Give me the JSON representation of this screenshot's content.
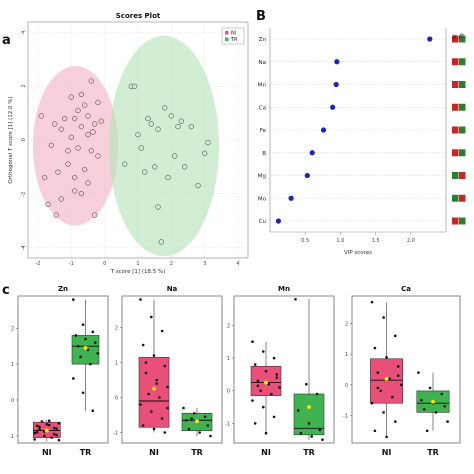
{
  "panels": {
    "a": "a",
    "b": "B",
    "c": "c"
  },
  "colors": {
    "NI": "#e8507a",
    "TR": "#3fb34f",
    "NI_fill": "#f3b7c7",
    "TR_fill": "#b9e3bd",
    "vip_point": "#1f24b5",
    "heat_high": "#c62828",
    "heat_low": "#2e7d32"
  },
  "chart_data": [
    {
      "type": "scatter",
      "title": "Scores Plot",
      "xlabel": "T score [1] (18.5 %)",
      "ylabel": "Orthogonal T score [1] (12.0 %)",
      "xlim": [
        -2.3,
        4.3
      ],
      "ylim": [
        -4.4,
        4.4
      ],
      "xticks": [
        "-2",
        "-1",
        "0",
        "1",
        "2",
        "3",
        "4"
      ],
      "yticks": [
        "4",
        "2",
        "0",
        "-2",
        "-4"
      ],
      "legend": [
        "NI",
        "TR"
      ],
      "legend_position": "top-right",
      "grid": true,
      "series": [
        {
          "name": "NI",
          "x": [
            -1.9,
            -1.7,
            -1.5,
            -1.4,
            -1.3,
            -1.2,
            -1.1,
            -1.0,
            -1.0,
            -0.9,
            -0.9,
            -0.8,
            -0.8,
            -0.7,
            -0.7,
            -0.6,
            -0.6,
            -0.5,
            -0.5,
            -0.4,
            -0.4,
            -0.3,
            -0.3,
            -0.2,
            -0.2,
            -1.6,
            -1.3,
            -0.9,
            -0.5,
            -0.1,
            -1.8,
            -1.1,
            -0.7,
            -0.35,
            -1.45
          ],
          "y": [
            0.9,
            -2.4,
            0.6,
            -1.2,
            -2.2,
            0.8,
            -0.9,
            0.1,
            1.6,
            -1.9,
            0.8,
            1.1,
            -0.3,
            -2.0,
            0.5,
            1.3,
            -1.1,
            0.2,
            0.9,
            -0.4,
            2.2,
            -2.8,
            0.6,
            -0.6,
            1.4,
            -0.2,
            0.4,
            -1.4,
            -1.6,
            0.7,
            -1.4,
            -0.4,
            1.7,
            0.3,
            -2.8
          ]
        },
        {
          "name": "TR",
          "x": [
            0.8,
            0.9,
            1.0,
            1.2,
            1.3,
            1.5,
            1.6,
            1.7,
            1.8,
            2.0,
            2.1,
            2.2,
            2.4,
            2.6,
            2.8,
            3.0,
            3.1,
            1.1,
            1.4,
            1.9,
            0.6,
            2.3,
            1.6
          ],
          "y": [
            2.0,
            2.0,
            0.2,
            -1.2,
            0.8,
            -1.0,
            -2.5,
            -3.8,
            1.2,
            0.9,
            -0.6,
            0.5,
            -1.0,
            0.5,
            -1.7,
            -0.5,
            -0.1,
            -0.3,
            0.6,
            -1.4,
            -0.9,
            0.7,
            0.4
          ]
        }
      ]
    },
    {
      "type": "scatter",
      "xlabel": "VIP scores",
      "xlim": [
        0,
        2.5
      ],
      "xticks": [
        "0.5",
        "1.0",
        "1.5",
        "2.0"
      ],
      "categories": [
        "Zn",
        "Na",
        "Mn",
        "Ca",
        "Fe",
        "B",
        "Mg",
        "Mo",
        "Cu"
      ],
      "values": [
        2.27,
        0.95,
        0.94,
        0.89,
        0.76,
        0.6,
        0.53,
        0.3,
        0.12
      ],
      "heatmap_columns": [
        "NI",
        "TR"
      ],
      "heatmap": [
        [
          "high",
          "low"
        ],
        [
          "high",
          "low"
        ],
        [
          "high",
          "low"
        ],
        [
          "high",
          "low"
        ],
        [
          "high",
          "low"
        ],
        [
          "high",
          "low"
        ],
        [
          "low",
          "high"
        ],
        [
          "low",
          "high"
        ],
        [
          "high",
          "low"
        ]
      ]
    },
    {
      "type": "box",
      "title": "Zn",
      "categories": [
        "NI",
        "TR"
      ],
      "ylim": [
        -1.2,
        2.9
      ],
      "yticks": [
        "2",
        "1",
        "0",
        "-1"
      ],
      "boxes": [
        {
          "name": "NI",
          "q1": -1.05,
          "median": -0.85,
          "q3": -0.62,
          "whisker_low": -1.15,
          "whisker_high": -0.55,
          "mean": -0.85,
          "points": [
            -1.1,
            -1.0,
            -0.95,
            -0.9,
            -0.85,
            -0.8,
            -0.75,
            -0.7,
            -0.65,
            -0.6,
            -1.05,
            -0.92,
            -0.88,
            -0.78,
            -0.72,
            -0.68,
            -0.98,
            -0.82,
            -0.58,
            -1.12
          ]
        },
        {
          "name": "TR",
          "q1": 1.0,
          "median": 1.5,
          "q3": 1.8,
          "whisker_low": -0.3,
          "whisker_high": 2.8,
          "mean": 1.45,
          "points": [
            2.8,
            2.1,
            1.9,
            1.8,
            1.7,
            1.6,
            1.5,
            1.4,
            1.3,
            1.2,
            1.0,
            0.6,
            0.2,
            -0.3
          ]
        }
      ]
    },
    {
      "type": "box",
      "title": "Na",
      "categories": [
        "NI",
        "TR"
      ],
      "ylim": [
        -1.3,
        2.9
      ],
      "yticks": [
        "2",
        "1",
        "0",
        "-1"
      ],
      "boxes": [
        {
          "name": "NI",
          "q1": -0.85,
          "median": -0.1,
          "q3": 1.15,
          "whisker_low": -1.0,
          "whisker_high": 2.8,
          "mean": 0.25,
          "points": [
            2.8,
            2.3,
            1.9,
            1.5,
            1.2,
            0.9,
            0.7,
            0.5,
            0.3,
            0.1,
            0.0,
            -0.2,
            -0.4,
            -0.6,
            -0.8,
            -0.9,
            -1.0,
            1.0,
            0.4,
            -0.3
          ]
        },
        {
          "name": "TR",
          "q1": -0.95,
          "median": -0.65,
          "q3": -0.45,
          "whisker_low": -1.1,
          "whisker_high": -0.3,
          "mean": -0.68,
          "points": [
            -0.3,
            -0.45,
            -0.55,
            -0.65,
            -0.7,
            -0.8,
            -0.9,
            -1.0,
            -1.1,
            -0.6
          ]
        }
      ]
    },
    {
      "type": "box",
      "title": "Mn",
      "categories": [
        "NI",
        "TR"
      ],
      "ylim": [
        -1.6,
        2.9
      ],
      "yticks": [
        "2",
        "1",
        "0",
        "-1"
      ],
      "boxes": [
        {
          "name": "NI",
          "q1": -0.15,
          "median": 0.25,
          "q3": 0.75,
          "whisker_low": -1.3,
          "whisker_high": 1.5,
          "mean": 0.25,
          "points": [
            1.5,
            1.2,
            1.0,
            0.8,
            0.6,
            0.4,
            0.3,
            0.2,
            0.1,
            0.0,
            -0.1,
            -0.3,
            -0.5,
            -0.8,
            -1.0,
            -1.3,
            0.5,
            0.15
          ]
        },
        {
          "name": "TR",
          "q1": -1.35,
          "median": -1.15,
          "q3": -0.1,
          "whisker_low": -1.5,
          "whisker_high": 2.8,
          "mean": -0.5,
          "points": [
            2.8,
            0.2,
            -0.1,
            -0.6,
            -1.0,
            -1.2,
            -1.3,
            -1.4,
            -1.5
          ]
        }
      ]
    },
    {
      "type": "box",
      "title": "Ca",
      "categories": [
        "NI",
        "TR"
      ],
      "ylim": [
        -1.9,
        2.9
      ],
      "yticks": [
        "2",
        "1",
        "0",
        "-1"
      ],
      "boxes": [
        {
          "name": "NI",
          "q1": -0.6,
          "median": 0.15,
          "q3": 0.85,
          "whisker_low": -1.7,
          "whisker_high": 2.7,
          "mean": 0.2,
          "points": [
            2.7,
            2.2,
            1.6,
            1.2,
            0.9,
            0.6,
            0.4,
            0.2,
            0.0,
            -0.2,
            -0.4,
            -0.6,
            -0.9,
            -1.2,
            -1.5,
            -1.7,
            0.3,
            -0.1
          ]
        },
        {
          "name": "TR",
          "q1": -0.9,
          "median": -0.6,
          "q3": -0.2,
          "whisker_low": -1.5,
          "whisker_high": 0.4,
          "mean": -0.55,
          "points": [
            0.4,
            -0.1,
            -0.3,
            -0.5,
            -0.6,
            -0.7,
            -0.8,
            -0.9,
            -1.2,
            -1.5
          ]
        }
      ]
    }
  ]
}
